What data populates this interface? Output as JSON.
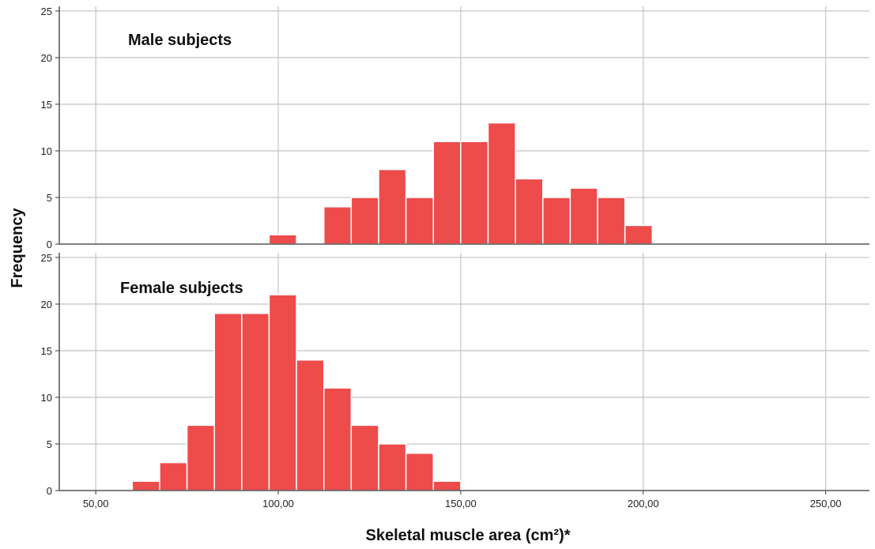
{
  "chart_data": {
    "type": "bar",
    "subtype": "histogram",
    "xlabel": "Skeletal muscle area (cm²)*",
    "ylabel": "Frequency",
    "xlim": [
      40,
      262
    ],
    "ylim": [
      0,
      25.5
    ],
    "x_ticks": [
      50,
      100,
      150,
      200,
      250
    ],
    "x_tick_labels": [
      "50,00",
      "100,00",
      "150,00",
      "200,00",
      "250,00"
    ],
    "y_ticks": [
      0,
      5,
      10,
      15,
      20,
      25
    ],
    "y_tick_labels": [
      "0",
      "5",
      "10",
      "15",
      "20",
      "25"
    ],
    "grid": true,
    "bar_color": "#ee4b4b",
    "grid_color": "#c8c8c8",
    "panels": [
      {
        "title": "Male subjects",
        "bins": [
          {
            "x0": 97.5,
            "x1": 105,
            "count": 1
          },
          {
            "x0": 112.5,
            "x1": 120,
            "count": 4
          },
          {
            "x0": 120,
            "x1": 127.5,
            "count": 5
          },
          {
            "x0": 127.5,
            "x1": 135,
            "count": 8
          },
          {
            "x0": 135,
            "x1": 142.5,
            "count": 5
          },
          {
            "x0": 142.5,
            "x1": 150,
            "count": 11
          },
          {
            "x0": 150,
            "x1": 157.5,
            "count": 11
          },
          {
            "x0": 157.5,
            "x1": 165,
            "count": 13
          },
          {
            "x0": 165,
            "x1": 172.5,
            "count": 7
          },
          {
            "x0": 172.5,
            "x1": 180,
            "count": 5
          },
          {
            "x0": 180,
            "x1": 187.5,
            "count": 6
          },
          {
            "x0": 187.5,
            "x1": 195,
            "count": 5
          },
          {
            "x0": 195,
            "x1": 202.5,
            "count": 2
          }
        ]
      },
      {
        "title": "Female subjects",
        "bins": [
          {
            "x0": 60,
            "x1": 67.5,
            "count": 1
          },
          {
            "x0": 67.5,
            "x1": 75,
            "count": 3
          },
          {
            "x0": 75,
            "x1": 82.5,
            "count": 7
          },
          {
            "x0": 82.5,
            "x1": 90,
            "count": 19
          },
          {
            "x0": 90,
            "x1": 97.5,
            "count": 19
          },
          {
            "x0": 97.5,
            "x1": 105,
            "count": 21
          },
          {
            "x0": 105,
            "x1": 112.5,
            "count": 14
          },
          {
            "x0": 112.5,
            "x1": 120,
            "count": 11
          },
          {
            "x0": 120,
            "x1": 127.5,
            "count": 7
          },
          {
            "x0": 127.5,
            "x1": 135,
            "count": 5
          },
          {
            "x0": 135,
            "x1": 142.5,
            "count": 4
          },
          {
            "x0": 142.5,
            "x1": 150,
            "count": 1
          }
        ]
      }
    ]
  }
}
